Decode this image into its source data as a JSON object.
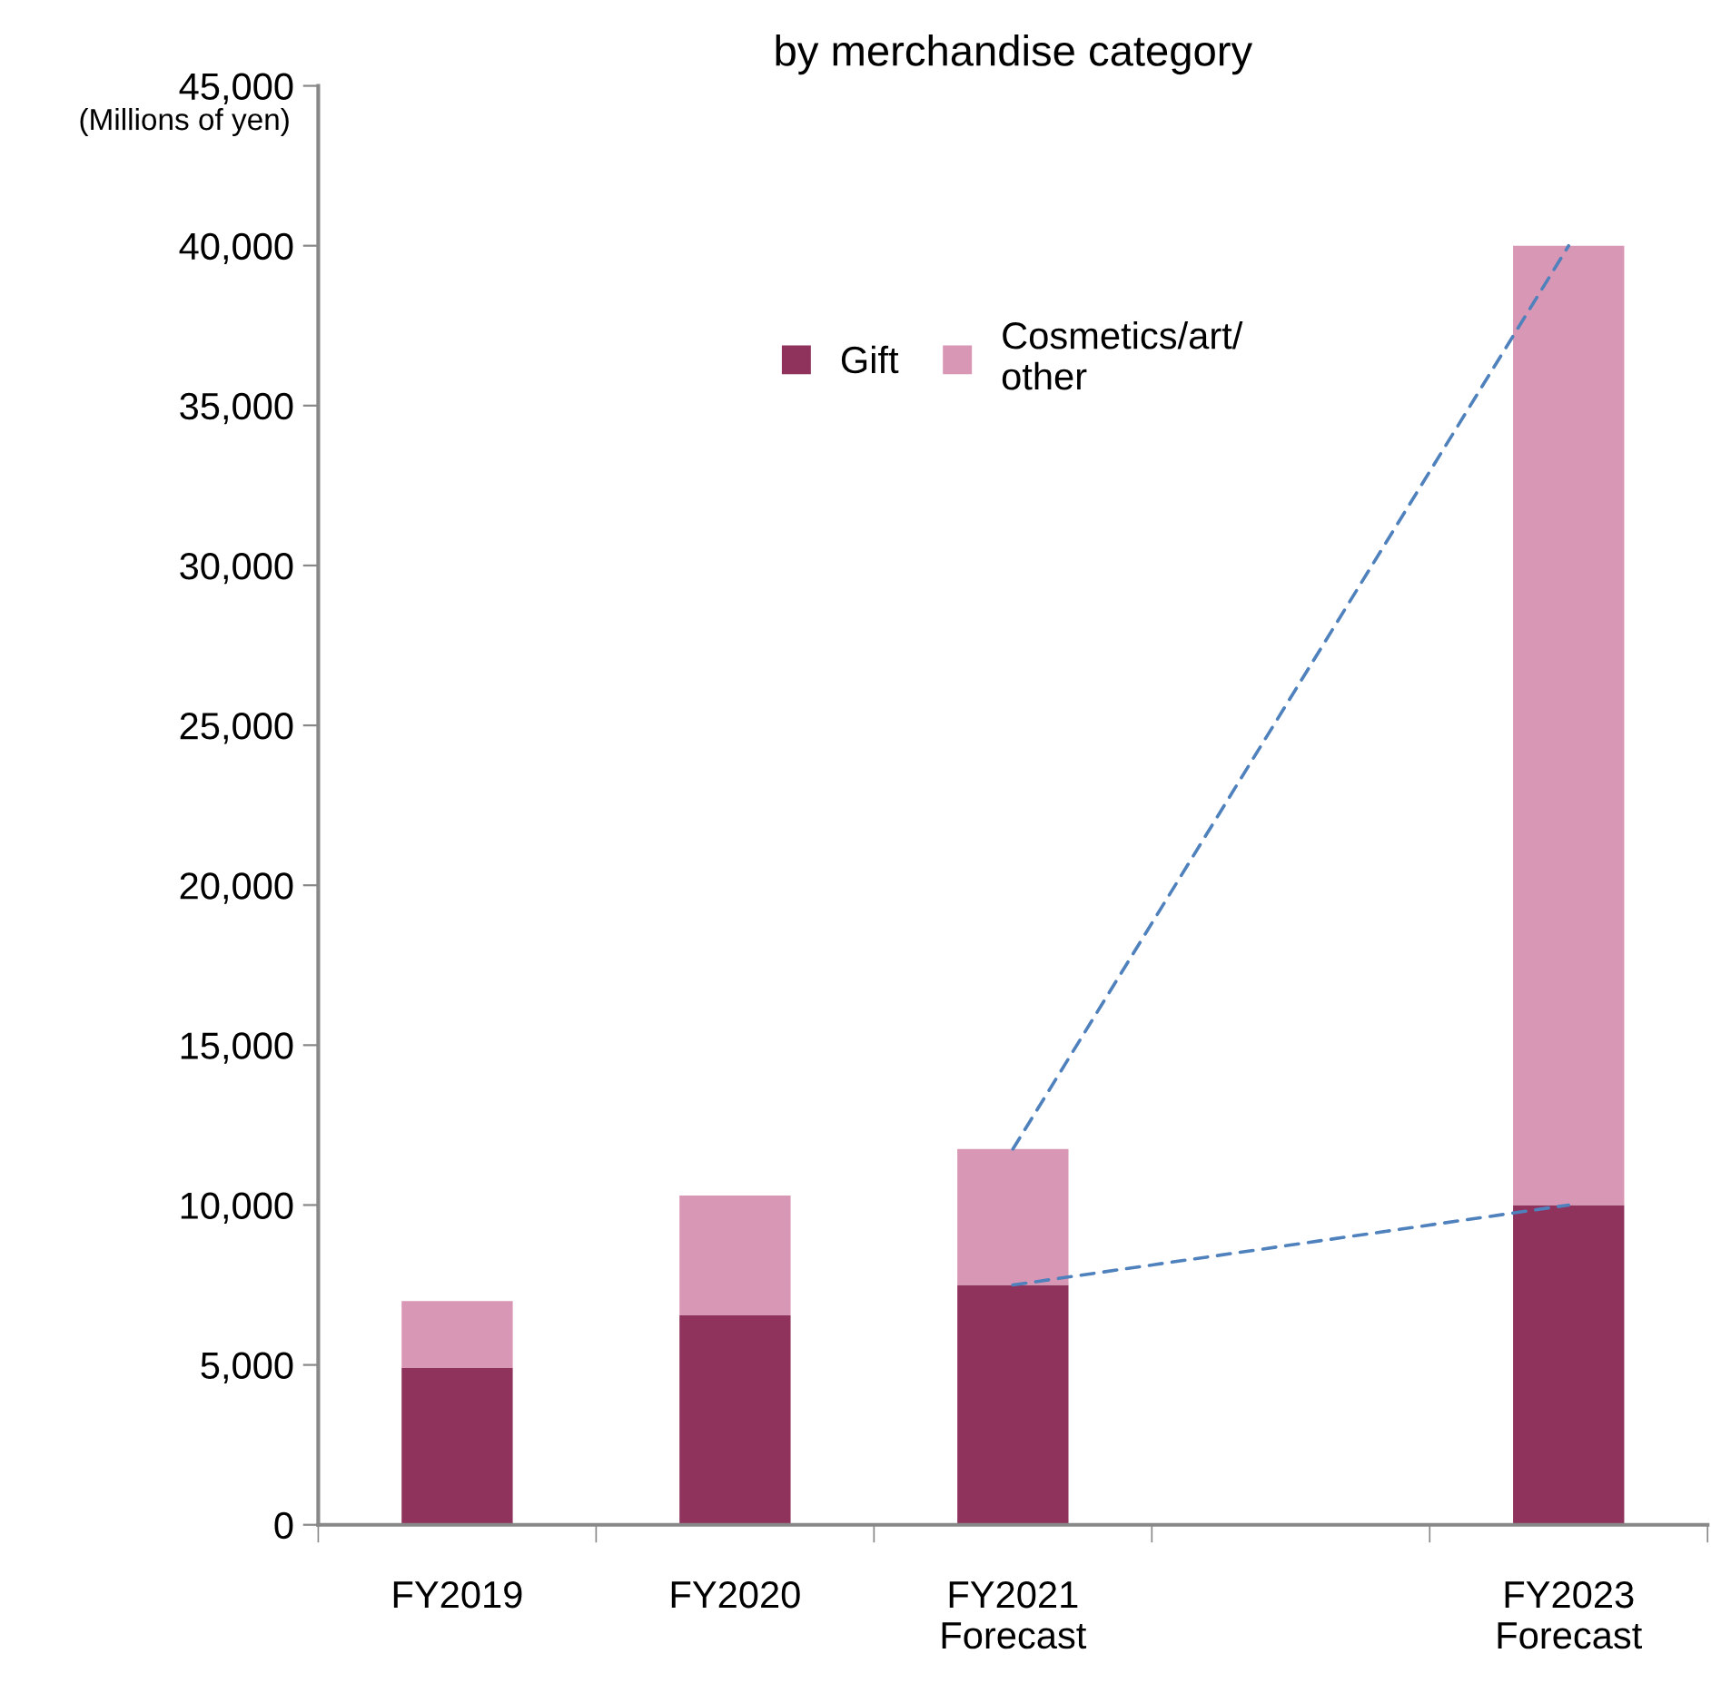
{
  "chart_data": {
    "type": "bar",
    "title": "by merchandise category",
    "ylabel": "(Millions of yen)",
    "categories": [
      "FY2019",
      "FY2020",
      "FY2021\nForecast",
      null,
      "FY2023\nForecast"
    ],
    "stacked": true,
    "series": [
      {
        "name": "Gift",
        "color": "#8f335d",
        "values": [
          4900,
          6550,
          7500,
          null,
          10000
        ]
      },
      {
        "name": "Cosmetics/art/\nother",
        "color": "#d897b4",
        "values": [
          2100,
          3750,
          4250,
          null,
          30000
        ]
      },
      {
        "type": "line",
        "color": "#4f81bd",
        "line_style": "dashed",
        "values": [
          null,
          null,
          7500,
          null,
          10000
        ]
      },
      {
        "type": "line",
        "color": "#4f81bd",
        "line_style": "dashed",
        "values": [
          null,
          null,
          11750,
          null,
          40000
        ]
      }
    ],
    "ylim": [
      0,
      45000
    ],
    "yticks": [
      {
        "value": 0,
        "label": "0"
      },
      {
        "value": 5000,
        "label": "5,000"
      },
      {
        "value": 10000,
        "label": "10,000"
      },
      {
        "value": 15000,
        "label": "15,000"
      },
      {
        "value": 20000,
        "label": "20,000"
      },
      {
        "value": 25000,
        "label": "25,000"
      },
      {
        "value": 30000,
        "label": "30,000"
      },
      {
        "value": 35000,
        "label": "35,000"
      },
      {
        "value": 40000,
        "label": "40,000"
      },
      {
        "value": 45000,
        "label": "45,000"
      }
    ],
    "grid": false,
    "legend": "top"
  }
}
